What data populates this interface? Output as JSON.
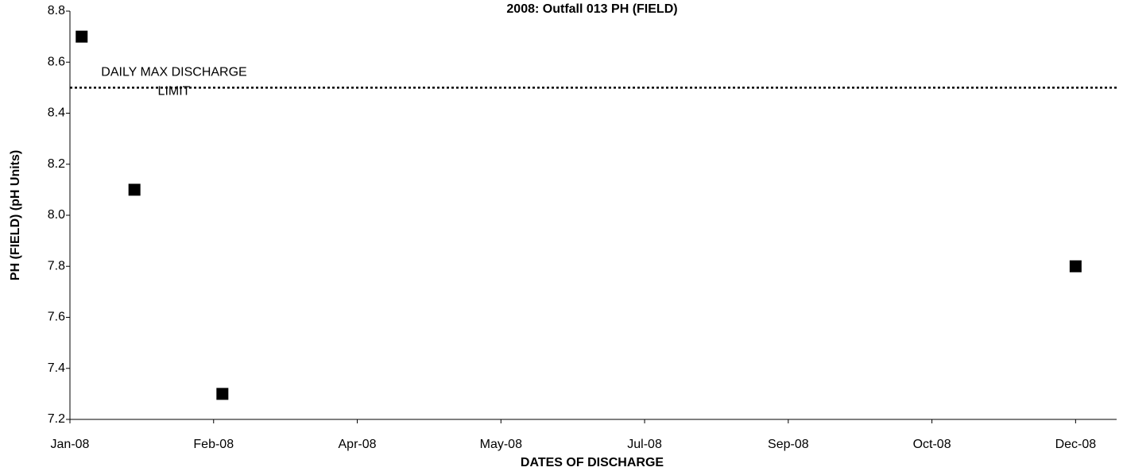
{
  "chart_data": {
    "type": "scatter",
    "title": "2008: Outfall 013 PH (FIELD)",
    "x_label": "DATES OF DISCHARGE",
    "y_label": "PH (FIELD) (pH Units)",
    "series": [
      {
        "name": "PH (FIELD)",
        "color": "#000000",
        "marker": "square",
        "x": [
          39452,
          39470,
          39500,
          39791
        ],
        "values": [
          8.7,
          8.1,
          7.3,
          7.8
        ]
      }
    ],
    "limit": {
      "value": 8.5,
      "label": [
        "DAILY MAX DISCHARGE",
        "LIMIT"
      ],
      "color": "#000000",
      "style": "dotted"
    },
    "xlim": [
      39448,
      39805
    ],
    "xticks": [
      {
        "value": 39448,
        "label": "Jan-08"
      },
      {
        "value": 39497,
        "label": "Feb-08"
      },
      {
        "value": 39546,
        "label": "Apr-08"
      },
      {
        "value": 39595,
        "label": "May-08"
      },
      {
        "value": 39644,
        "label": "Jul-08"
      },
      {
        "value": 39693,
        "label": "Sep-08"
      },
      {
        "value": 39742,
        "label": "Oct-08"
      },
      {
        "value": 39791,
        "label": "Dec-08"
      }
    ],
    "ylim": [
      7.2,
      8.8
    ],
    "yticks": [
      7.2,
      7.4,
      7.6,
      7.8,
      {
        "value": 8,
        "label": "8.0"
      },
      8.2,
      8.4,
      8.6,
      8.8
    ],
    "grid": false
  }
}
